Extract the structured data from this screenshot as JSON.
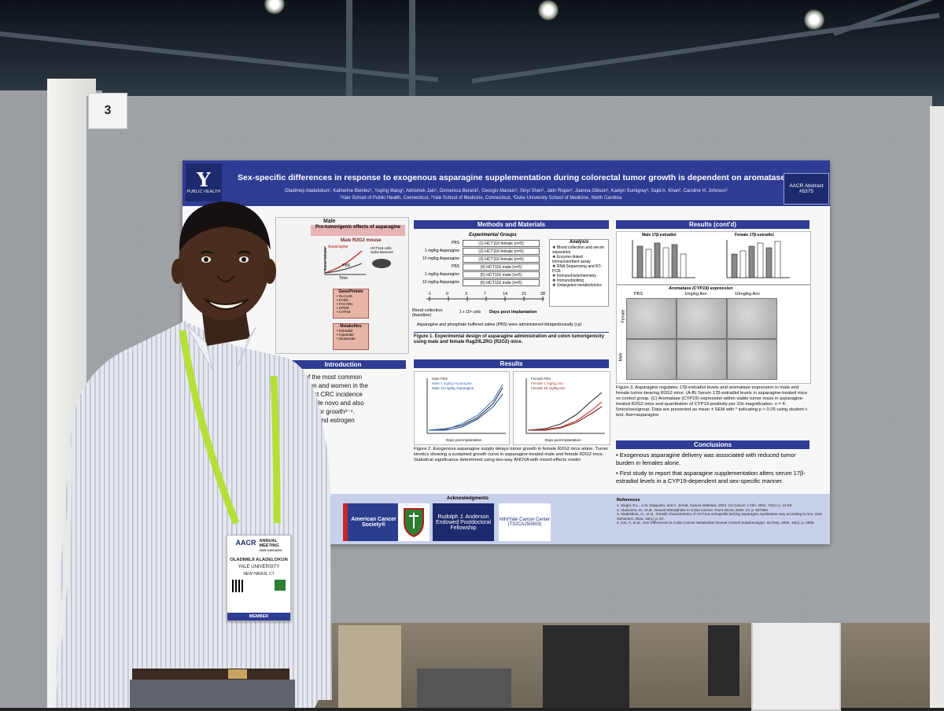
{
  "board_number": "3",
  "poster": {
    "logo_letter": "Y",
    "logo_text": "PUBLIC HEALTH",
    "title": "Sex-specific differences in response to exogenous asparagine supplementation during colorectal tumor growth is dependent on aromatase activity",
    "authors": "Oladimeji Aladelokun¹, Katherine Benitez¹, Yuying Wang¹, Abhishek Jain¹, Domenica Berardi¹, Georgio Maroun¹, Xinyi Shen¹, Jatin Roper³, Joanna Gibson², Kaelyn Sumigray², Sajid A. Khan², Caroline H. Johnson¹",
    "affiliations": "¹Yale School of Public Health, Connecticut, ²Yale School of Medicine, Connecticut, ³Duke University School of Medicine, North Carolina",
    "abstract_label": "AACR Abstract",
    "abstract_number": "#5375",
    "graphical": {
      "male_label": "Male",
      "pro_label": "Pro-tumorigenic effects of asparagine",
      "mouse_label": "Male R2G2 mouse",
      "asparagine_label": "Asparagine",
      "pbs_label": "PBS",
      "time_label": "Time",
      "volume_label": "Tumor Volume",
      "cells_label": "HCT116 cells Subcutaneous",
      "gene_title": "Gene/Protein",
      "genes": [
        "SLC1A5",
        "FASN",
        "FACAR1",
        "GPER",
        "CYP19"
      ],
      "metab_title": "Metabolites",
      "metabolites": [
        "Estradiol",
        "Aspartate",
        "Glutamate"
      ]
    },
    "introduction": {
      "heading": "Introduction",
      "lines": [
        "one of the most common",
        "h in men and women in the",
        "en) affect CRC incidence",
        "hesized de novo and also",
        "ence tumor growth³⁻⁴.",
        "tabolism and estrogen",
        "is not clear."
      ]
    },
    "methods": {
      "heading": "Methods and Materials",
      "groups_title": "Experimental Groups",
      "groups": [
        {
          "dose": "PBS",
          "group": "(1) HCT116 female (n=5)"
        },
        {
          "dose": "1 mg/kg Asparagine",
          "group": "(2) HCT116 female (n=5)"
        },
        {
          "dose": "10 mg/kg Asparagine",
          "group": "(3) HCT116 female (n=5)"
        },
        {
          "dose": "PBS",
          "group": "(4) HCT116 male (n=5)"
        },
        {
          "dose": "1 mg/kg Asparagine",
          "group": "(5) HCT116 male (n=5)"
        },
        {
          "dose": "10 mg/kg Asparagine",
          "group": "(6) HCT116 male (n=5)"
        }
      ],
      "analysis_title": "Analysis",
      "analysis": [
        "Blood collection and serum separation",
        "Enzyme-linked immunosorbent assay",
        "RNA Sequencing and RT-PCR",
        "Immunohistochemistry",
        "Immunoblotting",
        "Untargeted metabolomics"
      ],
      "timeline_ticks": [
        "-1",
        "0",
        "3",
        "7",
        "14",
        "21",
        "28"
      ],
      "cells_note": "1 x 10⁶ cells",
      "days_label": "Days post implantation",
      "blood_label": "Blood collection (baseline)",
      "admin_note": "Asparagine and phosphate buffered saline (PBS) were administered intraperitoneally (i.p)",
      "figure_caption": "Figure 1. Experimental design of asparagine administration and colon tumorigenicity using male and female Rag2/IL2RG (R2G2) mice."
    },
    "results": {
      "heading": "Results",
      "legend_male": [
        "Male PBS",
        "Male 1 mg/kg Asparagine",
        "Male 10 mg/kg Asparagine"
      ],
      "legend_female": [
        "Female PBS",
        "Female 1 mg/kg Asn",
        "Female 10 mg/kg Asn"
      ],
      "x_label": "Days post implantation",
      "y_label": "Tumor volume (mm³)",
      "figure_caption": "Figure 2. Exogenous asparagine supply delays tumor growth in female R2G2 mice alone. Tumor kinetics showing a sustained growth curve in asparagine-treated male and female R2G2 mice. Statistical significance determined using two-way ANOVA with mixed-effects model"
    },
    "results_contd": {
      "heading": "Results (cont'd)",
      "panel_a": "Male 17β-estradiol",
      "panel_b": "Female 17β-estradiol",
      "panel_c": "Aromatase (CYP19) expression",
      "col_labels": [
        "PBS",
        "1mg/kg Asn",
        "10mg/kg Asn"
      ],
      "row_labels": [
        "Female",
        "Male"
      ],
      "figure_caption": "Figure 3. Asparagine regulates 17β-estradiol levels and aromatase expression in male and female tumor-bearing R2G2 mice. (A-B) Serum 17β-estradiol levels in asparagine-treated mice vs control group. (C) Aromatase (CYP19) expression within viable tumor mass in asparagine-treated R2G2 mice and quantitation of CYP19 positivity per 10x magnification; n = 4-5mice/sex/group. Data are presented as mean ± SEM with * indicating p < 0.05 using student t-test. Asn=asparagine"
    },
    "conclusions": {
      "heading": "Conclusions",
      "items": [
        "Exogenous asparagine delivery was associated with reduced tumor burden in females alone.",
        "First study to report that asparagine supplementation alters serum 17β-estradiol levels in a CYP19-dependent and sex-specific manner."
      ]
    },
    "acknowledgments_title": "Acknowledgments",
    "sponsors": [
      "American Cancer Society®",
      "Rudolph J. Anderson Endowed Postdoctoral Fellowship",
      "NIH/Yale Cancer Center (T32CA250803)"
    ],
    "references_title": "References",
    "references": [
      "1. Siegel, R.L., A.N. Giaquinto, and A. Jemal, Cancer statistics, 2024. CA Cancer J Clin, 2024. 74(1): p. 12-49.",
      "2. Abancens, M., et al., Sexual Dimorphism in Colon Cancer. Front Oncol, 2020. 10: p. 607909",
      "3. Aladelokun, O., et al., Growth characteristics of HCT116 xenografts lacking asparagine synthetase vary according to sex. Hum Genomics, 2024. 18(1): p. 67.",
      "4. Cai, Y., et al., Sex Differences in Colon Cancer Metabolism Reveal A Novel Subphenotype. Sci Rep, 2020. 10(1): p. 4905"
    ]
  },
  "badge": {
    "event_logo": "AACR",
    "event_line1": "ANNUAL",
    "event_line2": "MEETING",
    "event_line3": "2025 CHICAGO",
    "name": "OLADIMEJI ALADELOKUN",
    "org": "YALE UNIVERSITY",
    "location": "NEW HAVEN, CT",
    "type": "MEMBER",
    "lanyard_text": "AACR"
  },
  "colors": {
    "poster_blue": "#2f3c94",
    "lanyard": "#b5e03a",
    "board_gray": "#9ea1a4"
  }
}
